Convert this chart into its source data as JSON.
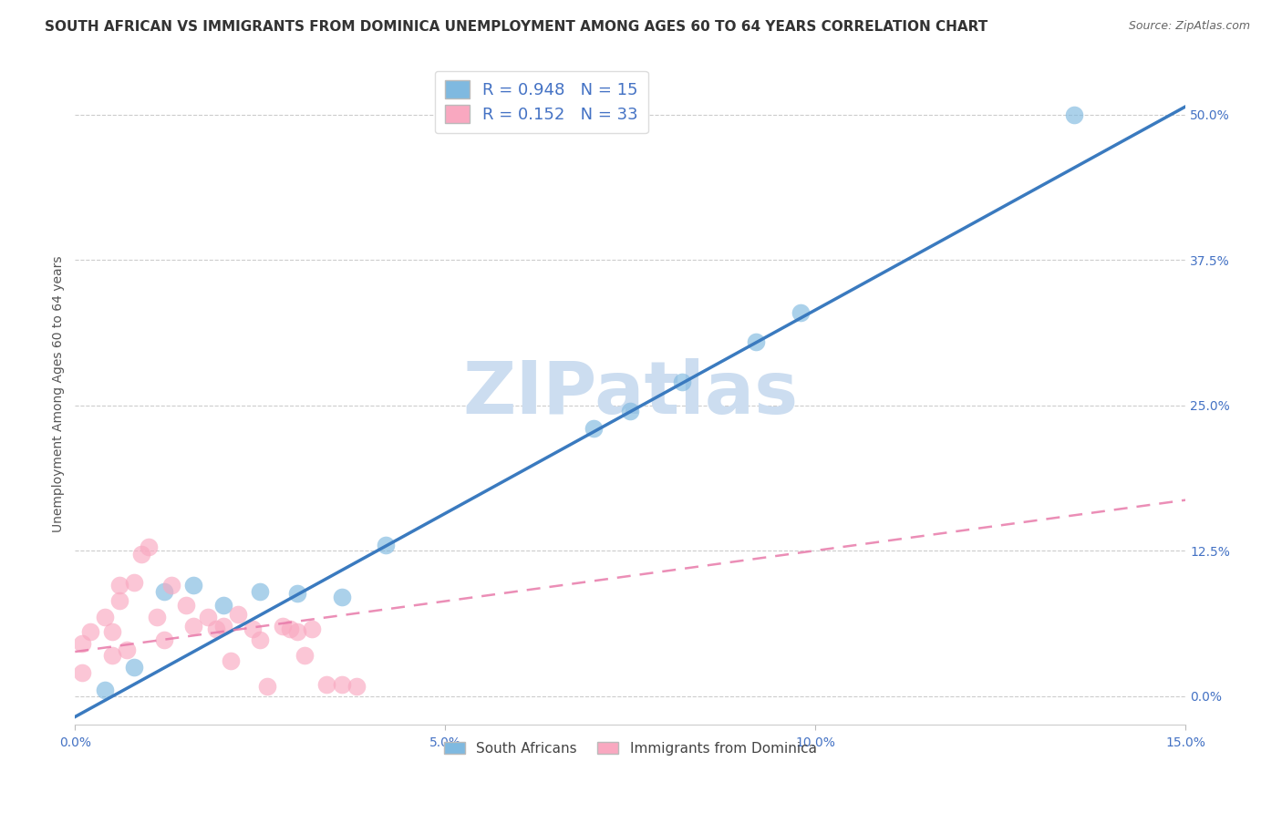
{
  "title": "SOUTH AFRICAN VS IMMIGRANTS FROM DOMINICA UNEMPLOYMENT AMONG AGES 60 TO 64 YEARS CORRELATION CHART",
  "source": "Source: ZipAtlas.com",
  "ylabel": "Unemployment Among Ages 60 to 64 years",
  "ytick_labels": [
    "0.0%",
    "12.5%",
    "25.0%",
    "37.5%",
    "50.0%"
  ],
  "ytick_values": [
    0.0,
    0.125,
    0.25,
    0.375,
    0.5
  ],
  "xtick_values": [
    0.0,
    0.05,
    0.1,
    0.15
  ],
  "xlim": [
    0.0,
    0.15
  ],
  "ylim": [
    -0.025,
    0.545
  ],
  "blue_R": 0.948,
  "blue_N": 15,
  "pink_R": 0.152,
  "pink_N": 33,
  "blue_color": "#7fb9e0",
  "pink_color": "#f9a8c0",
  "blue_line_color": "#3a7abf",
  "pink_line_color": "#e87aaa",
  "blue_line_slope": 3.5,
  "blue_line_intercept": -0.018,
  "pink_line_slope": 0.87,
  "pink_line_intercept": 0.038,
  "watermark_text": "ZIPatlas",
  "legend_label_blue": "South Africans",
  "legend_label_pink": "Immigrants from Dominica",
  "blue_scatter_x": [
    0.004,
    0.008,
    0.012,
    0.016,
    0.02,
    0.025,
    0.03,
    0.036,
    0.042,
    0.07,
    0.075,
    0.082,
    0.092,
    0.098,
    0.135
  ],
  "blue_scatter_y": [
    0.005,
    0.025,
    0.09,
    0.095,
    0.078,
    0.09,
    0.088,
    0.085,
    0.13,
    0.23,
    0.245,
    0.27,
    0.305,
    0.33,
    0.5
  ],
  "pink_scatter_x": [
    0.001,
    0.001,
    0.002,
    0.004,
    0.005,
    0.005,
    0.006,
    0.006,
    0.007,
    0.008,
    0.009,
    0.01,
    0.011,
    0.012,
    0.013,
    0.015,
    0.016,
    0.018,
    0.019,
    0.02,
    0.021,
    0.022,
    0.024,
    0.025,
    0.026,
    0.028,
    0.029,
    0.03,
    0.031,
    0.032,
    0.034,
    0.036,
    0.038
  ],
  "pink_scatter_y": [
    0.045,
    0.02,
    0.055,
    0.068,
    0.055,
    0.035,
    0.095,
    0.082,
    0.04,
    0.098,
    0.122,
    0.128,
    0.068,
    0.048,
    0.095,
    0.078,
    0.06,
    0.068,
    0.058,
    0.06,
    0.03,
    0.07,
    0.058,
    0.048,
    0.008,
    0.06,
    0.058,
    0.055,
    0.035,
    0.058,
    0.01,
    0.01,
    0.008
  ],
  "grid_color": "#cccccc",
  "background_color": "#ffffff",
  "title_fontsize": 11,
  "axis_label_fontsize": 10,
  "tick_fontsize": 10,
  "tick_color": "#4472c4",
  "watermark_color": "#ccddf0",
  "watermark_fontsize": 58
}
